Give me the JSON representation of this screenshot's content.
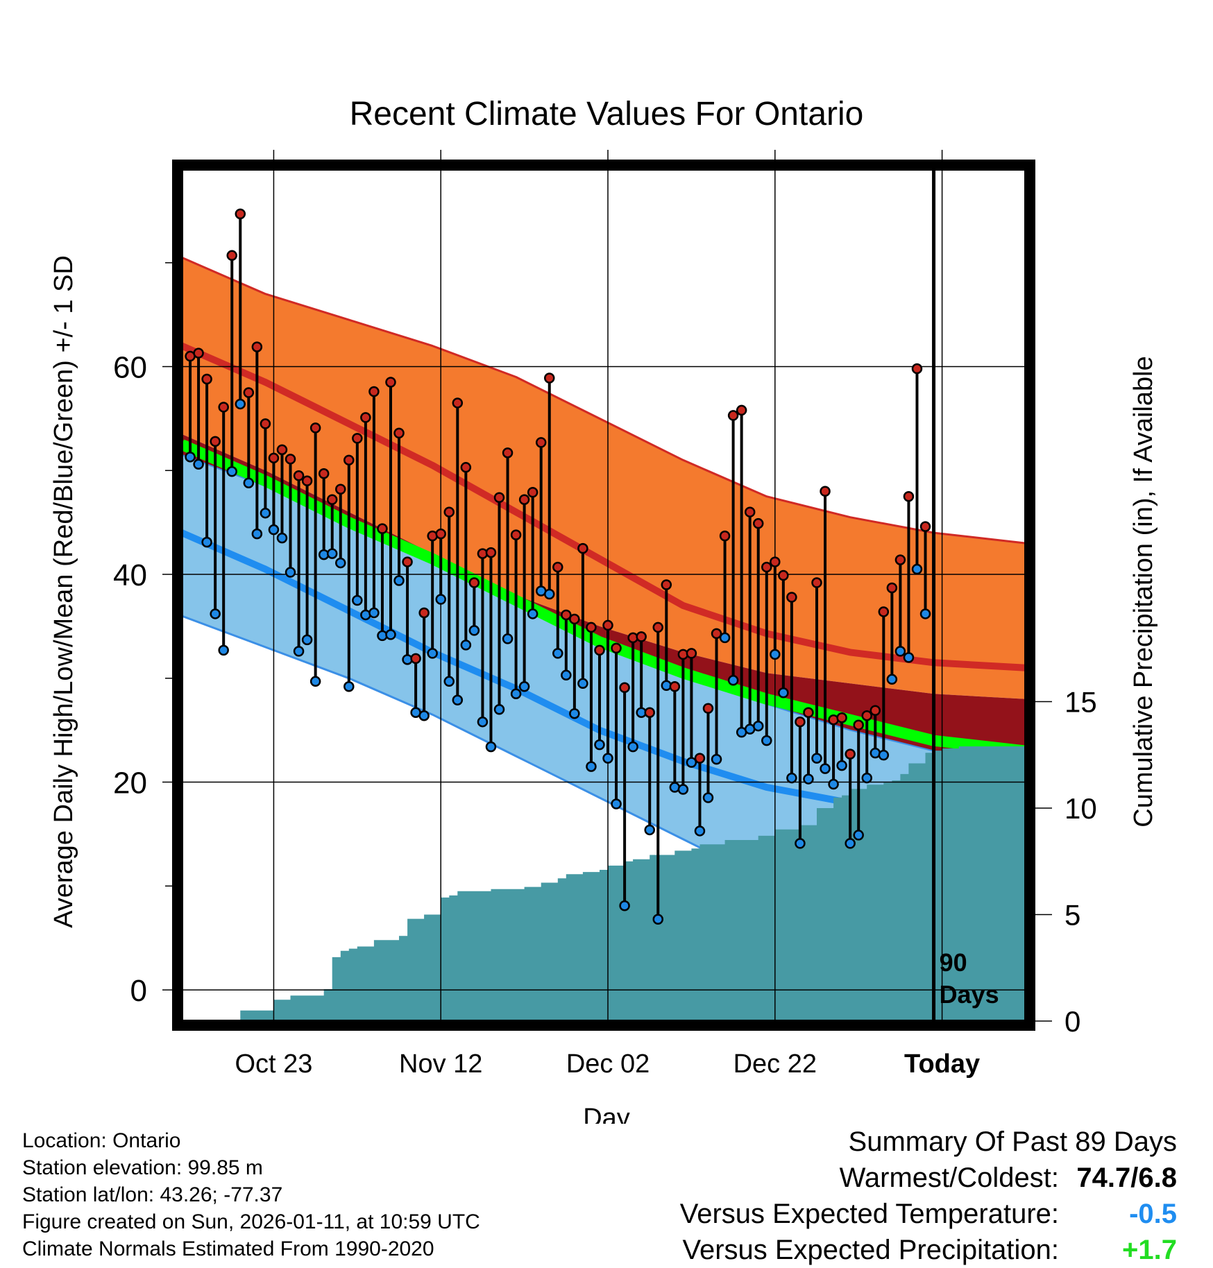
{
  "chart_data": {
    "type": "line",
    "title": "Recent Climate Values For Ontario",
    "xlabel": "Day",
    "ylabel": "Average Daily High/Low/Mean (Red/Blue/Green) +/- 1 SD",
    "y2label": "Cumulative Precipitation (in), If Available",
    "x_tick_labels": [
      "Oct 23",
      "Nov 12",
      "Dec 02",
      "Dec 22",
      "Today"
    ],
    "x_tick_days": [
      11,
      31,
      51,
      71,
      91
    ],
    "xlim": [
      0,
      101
    ],
    "ylim": [
      -3,
      79
    ],
    "y_ticks": [
      0,
      20,
      40,
      60
    ],
    "y2lim": [
      0,
      40
    ],
    "y2_ticks": [
      0,
      5,
      10,
      15
    ],
    "today_marker": {
      "label_line1": "90",
      "label_line2": "Days",
      "day": 90
    },
    "normals": {
      "days": [
        0,
        10,
        20,
        30,
        40,
        50,
        60,
        70,
        80,
        90,
        101
      ],
      "high_mean": [
        62,
        58.5,
        54.5,
        50.5,
        46,
        41.5,
        37,
        34.3,
        32.5,
        31.5,
        31
      ],
      "high_sd_upper": [
        70.5,
        67,
        64.5,
        62,
        59,
        55,
        51,
        47.5,
        45.5,
        44,
        43
      ],
      "high_sd_lower": [
        53.5,
        50,
        46,
        42,
        38,
        35,
        32.5,
        30.5,
        29.5,
        28.5,
        28
      ],
      "mean": [
        52.5,
        49,
        45,
        41.5,
        37.5,
        33.5,
        30.5,
        28,
        26,
        24,
        23
      ],
      "low_mean": [
        44,
        40.5,
        36.5,
        32.5,
        29,
        25,
        22,
        19.5,
        18,
        17,
        16.5
      ],
      "low_sd_upper": [
        51.5,
        48.5,
        45,
        41.5,
        37.5,
        34,
        30.5,
        27.5,
        25,
        23,
        20.5
      ],
      "low_sd_lower": [
        36,
        33,
        30,
        26.5,
        22.5,
        18.5,
        14.5,
        10.5,
        7,
        4,
        1
      ]
    },
    "series": [
      {
        "name": "Observed High",
        "values": [
          61,
          61.3,
          58.8,
          52.8,
          56.1,
          70.7,
          74.7,
          57.5,
          61.9,
          54.5,
          51.2,
          52,
          51.1,
          49.5,
          49,
          54.1,
          49.7,
          47.2,
          48.2,
          51,
          53.1,
          55.1,
          57.6,
          44.4,
          58.5,
          53.6,
          41.2,
          31.9,
          36.3,
          43.7,
          43.9,
          46,
          56.5,
          50.3,
          39.2,
          42,
          42.1,
          47.4,
          51.7,
          43.8,
          47.2,
          47.9,
          52.7,
          58.9,
          40.7,
          36.1,
          35.7,
          42.5,
          34.9,
          32.7,
          35.1,
          32.9,
          29.1,
          33.9,
          34,
          26.7,
          34.9,
          39,
          29.2,
          32.3,
          32.4,
          22.3,
          27.1,
          34.3,
          43.7,
          55.3,
          55.8,
          46,
          44.9,
          40.7,
          41.2,
          39.9,
          37.8,
          25.8,
          26.7,
          39.2,
          48,
          26,
          26.2,
          22.7,
          25.5,
          26.4,
          26.9,
          36.4,
          38.7,
          41.4,
          47.5,
          59.8,
          44.6
        ]
      },
      {
        "name": "Observed Low",
        "values": [
          51.3,
          50.6,
          43.1,
          36.2,
          32.7,
          49.9,
          56.4,
          48.8,
          43.9,
          45.9,
          44.3,
          43.5,
          40.2,
          32.6,
          33.7,
          29.7,
          41.9,
          42,
          41.1,
          29.2,
          37.5,
          36.1,
          36.3,
          34.1,
          34.2,
          39.4,
          31.8,
          26.7,
          26.4,
          32.4,
          37.6,
          29.7,
          27.9,
          33.2,
          34.6,
          25.8,
          23.4,
          27,
          33.8,
          28.5,
          29.2,
          36.2,
          38.4,
          38.1,
          32.4,
          30.3,
          26.6,
          29.5,
          21.5,
          23.6,
          22.3,
          17.9,
          8.1,
          23.4,
          26.7,
          15.4,
          6.8,
          29.3,
          19.5,
          19.3,
          21.9,
          15.3,
          18.5,
          22.2,
          33.9,
          29.8,
          24.8,
          25.1,
          25.4,
          24,
          32.3,
          28.6,
          20.4,
          14.1,
          20.3,
          22.3,
          21.3,
          19.8,
          21.6,
          14.1,
          14.9,
          20.4,
          22.8,
          22.6,
          29.9,
          32.6,
          32,
          40.5,
          36.2
        ]
      },
      {
        "name": "Cumulative Precipitation",
        "values": [
          0,
          0,
          0,
          0,
          0,
          0,
          0,
          0.5,
          0.5,
          0.5,
          0.5,
          1,
          1,
          1.2,
          1.2,
          1.2,
          1.2,
          1.5,
          3,
          3.3,
          3.4,
          3.5,
          3.5,
          3.8,
          3.8,
          3.8,
          4,
          4.8,
          4.8,
          5,
          5,
          5.8,
          5.9,
          6.1,
          6.1,
          6.1,
          6.1,
          6.2,
          6.2,
          6.2,
          6.2,
          6.3,
          6.3,
          6.5,
          6.5,
          6.7,
          6.9,
          6.9,
          7,
          7,
          7.1,
          7.3,
          7.3,
          7.5,
          7.6,
          7.6,
          7.8,
          7.8,
          7.8,
          8,
          8,
          8.1,
          8.3,
          8.3,
          8.3,
          8.5,
          8.5,
          8.5,
          8.5,
          8.7,
          8.7,
          9,
          9,
          9,
          9.2,
          9.2,
          10,
          10,
          10.5,
          10.6,
          10.9,
          10.9,
          11.1,
          11.1,
          11.2,
          11.3,
          11.6,
          12.1,
          12.1,
          12.6,
          12.7,
          12.8,
          12.8,
          12.9,
          12.9,
          12.9,
          12.9,
          12.9,
          12.9,
          12.9,
          12.9,
          12.9
        ]
      }
    ],
    "colors": {
      "high_band": "#f47a2e",
      "high_line": "#d02a25",
      "dark_band": "#93121a",
      "mean_band": "#00ff00",
      "low_band": "#86c4ea",
      "low_line": "#1f8df0",
      "low_edge": "#3b8fe6",
      "precip_fill": "#479aa4",
      "high_dot": "#c8281e",
      "low_dot": "#1e88e5"
    }
  },
  "info": {
    "location": "Location: Ontario",
    "elevation": "Station elevation: 99.85 m",
    "latlon": "Station lat/lon: 43.26; -77.37",
    "created": "Figure created on Sun, 2026-01-11, at 10:59 UTC",
    "normals": "Climate Normals Estimated From 1990-2020"
  },
  "summary": {
    "heading": "Summary Of Past 89 Days",
    "warmest_label": "Warmest/Coldest:",
    "warmest_value": "74.7/6.8",
    "temp_label": "Versus Expected Temperature:",
    "temp_value": "-0.5",
    "temp_color": "#1f8df0",
    "precip_label": "Versus Expected Precipitation:",
    "precip_value": "+1.7",
    "precip_color": "#22dd22"
  }
}
